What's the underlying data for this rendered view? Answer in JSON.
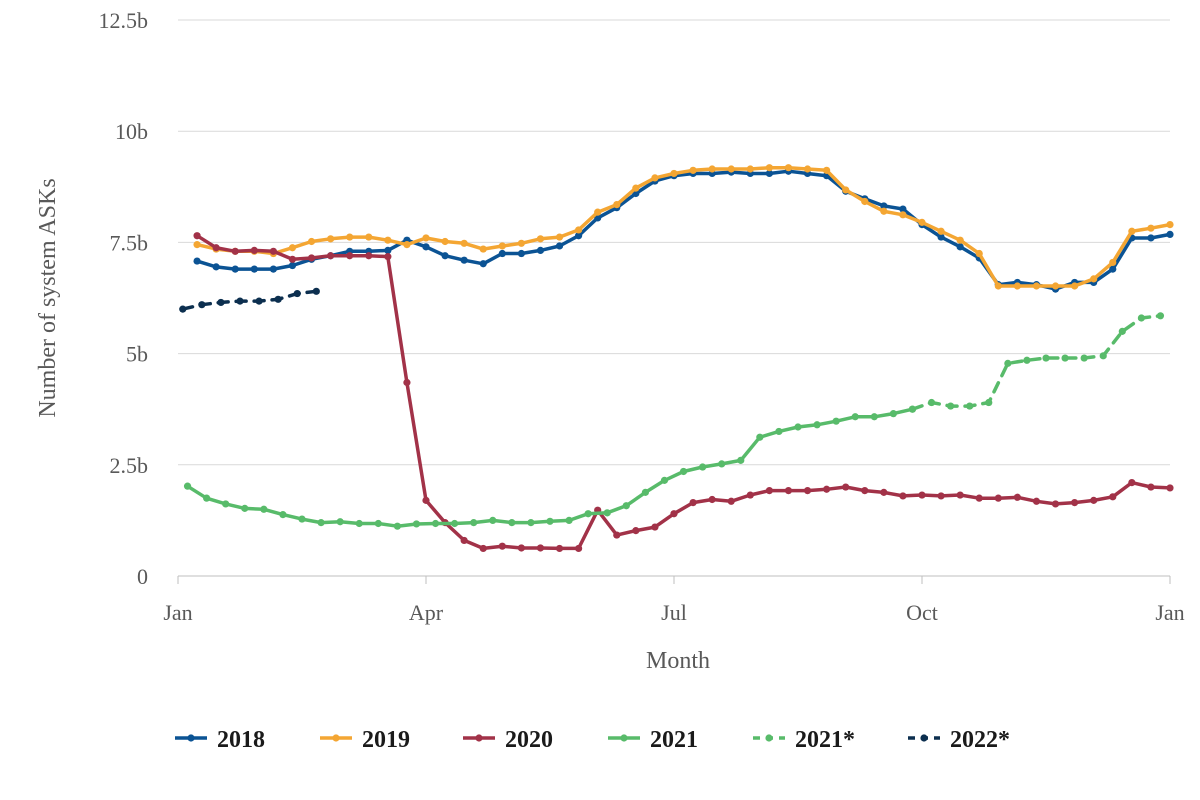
{
  "chart_data": {
    "type": "line",
    "xlabel": "Month",
    "ylabel": "Number of system ASKs",
    "x_ticks": [
      {
        "label": "Jan",
        "week": 0
      },
      {
        "label": "Apr",
        "week": 13
      },
      {
        "label": "Jul",
        "week": 26
      },
      {
        "label": "Oct",
        "week": 39
      },
      {
        "label": "Jan",
        "week": 52
      }
    ],
    "y_ticks": [
      "0",
      "2.5b",
      "5b",
      "7.5b",
      "10b",
      "12.5b"
    ],
    "ylim": [
      0,
      12.5
    ],
    "legend_position": "bottom",
    "series": [
      {
        "name": "2018",
        "color": "#0b5394",
        "dashed": false,
        "x": [
          1,
          2,
          3,
          4,
          5,
          6,
          7,
          8,
          9,
          10,
          11,
          12,
          13,
          14,
          15,
          16,
          17,
          18,
          19,
          20,
          21,
          22,
          23,
          24,
          25,
          26,
          27,
          28,
          29,
          30,
          31,
          32,
          33,
          34,
          35,
          36,
          37,
          38,
          39,
          40,
          41,
          42,
          43,
          44,
          45,
          46,
          47,
          48,
          49,
          50,
          51,
          52
        ],
        "y": [
          7.08,
          6.95,
          6.9,
          6.9,
          6.9,
          6.98,
          7.12,
          7.2,
          7.3,
          7.3,
          7.32,
          7.55,
          7.4,
          7.2,
          7.1,
          7.02,
          7.25,
          7.25,
          7.32,
          7.42,
          7.65,
          8.05,
          8.28,
          8.6,
          8.88,
          9.0,
          9.05,
          9.05,
          9.08,
          9.05,
          9.05,
          9.1,
          9.05,
          9.0,
          8.65,
          8.48,
          8.32,
          8.25,
          7.9,
          7.62,
          7.4,
          7.15,
          6.55,
          6.6,
          6.55,
          6.45,
          6.6,
          6.6,
          6.9,
          7.6,
          7.6,
          7.68
        ]
      },
      {
        "name": "2019",
        "color": "#f4a633",
        "dashed": false,
        "x": [
          1,
          2,
          3,
          4,
          5,
          6,
          7,
          8,
          9,
          10,
          11,
          12,
          13,
          14,
          15,
          16,
          17,
          18,
          19,
          20,
          21,
          22,
          23,
          24,
          25,
          26,
          27,
          28,
          29,
          30,
          31,
          32,
          33,
          34,
          35,
          36,
          37,
          38,
          39,
          40,
          41,
          42,
          43,
          44,
          45,
          46,
          47,
          48,
          49,
          50,
          51,
          52
        ],
        "y": [
          7.45,
          7.35,
          7.3,
          7.3,
          7.25,
          7.38,
          7.52,
          7.58,
          7.62,
          7.62,
          7.55,
          7.45,
          7.6,
          7.52,
          7.48,
          7.35,
          7.42,
          7.48,
          7.58,
          7.62,
          7.78,
          8.18,
          8.35,
          8.72,
          8.95,
          9.05,
          9.12,
          9.15,
          9.15,
          9.15,
          9.18,
          9.18,
          9.15,
          9.12,
          8.68,
          8.42,
          8.2,
          8.12,
          7.95,
          7.75,
          7.55,
          7.25,
          6.52,
          6.52,
          6.52,
          6.52,
          6.52,
          6.68,
          7.05,
          7.75,
          7.82,
          7.9
        ]
      },
      {
        "name": "2020",
        "color": "#a23248",
        "dashed": false,
        "x": [
          1,
          2,
          3,
          4,
          5,
          6,
          7,
          8,
          9,
          10,
          11,
          12,
          13,
          14,
          15,
          16,
          17,
          18,
          19,
          20,
          21,
          22,
          23,
          24,
          25,
          26,
          27,
          28,
          29,
          30,
          31,
          32,
          33,
          34,
          35,
          36,
          37,
          38,
          39,
          40,
          41,
          42,
          43,
          44,
          45,
          46,
          47,
          48,
          49,
          50,
          51,
          52
        ],
        "y": [
          7.65,
          7.38,
          7.3,
          7.32,
          7.3,
          7.12,
          7.15,
          7.2,
          7.2,
          7.2,
          7.18,
          4.35,
          1.7,
          1.2,
          0.8,
          0.62,
          0.67,
          0.63,
          0.63,
          0.62,
          0.62,
          1.48,
          0.92,
          1.02,
          1.1,
          1.4,
          1.65,
          1.72,
          1.68,
          1.82,
          1.92,
          1.92,
          1.92,
          1.95,
          2.0,
          1.92,
          1.88,
          1.8,
          1.82,
          1.8,
          1.82,
          1.75,
          1.75,
          1.77,
          1.68,
          1.62,
          1.65,
          1.7,
          1.78,
          2.1,
          2.0,
          1.98
        ]
      },
      {
        "name": "2021",
        "color": "#58bb6a",
        "dashed": false,
        "x": [
          0.5,
          1.5,
          2.5,
          3.5,
          4.5,
          5.5,
          6.5,
          7.5,
          8.5,
          9.5,
          10.5,
          11.5,
          12.5,
          13.5,
          14.5,
          15.5,
          16.5,
          17.5,
          18.5,
          19.5,
          20.5,
          21.5,
          22.5,
          23.5,
          24.5,
          25.5,
          26.5,
          27.5,
          28.5,
          29.5,
          30.5,
          31.5,
          32.5,
          33.5,
          34.5,
          35.5,
          36.5,
          37.5,
          38.5
        ],
        "y": [
          2.02,
          1.75,
          1.62,
          1.52,
          1.5,
          1.38,
          1.28,
          1.2,
          1.22,
          1.18,
          1.18,
          1.12,
          1.17,
          1.18,
          1.18,
          1.2,
          1.25,
          1.2,
          1.2,
          1.23,
          1.25,
          1.4,
          1.42,
          1.58,
          1.88,
          2.15,
          2.35,
          2.45,
          2.52,
          2.6,
          3.12,
          3.25,
          3.35,
          3.4,
          3.48,
          3.58,
          3.58,
          3.65,
          3.75
        ]
      },
      {
        "name": "2021*",
        "color": "#58bb6a",
        "dashed": true,
        "x": [
          38.5,
          39.5,
          40.5,
          41.5,
          42.5,
          43.5,
          44.5,
          45.5,
          46.5,
          47.5,
          48.5,
          49.5,
          50.5,
          51.5
        ],
        "y": [
          3.75,
          3.9,
          3.82,
          3.82,
          3.9,
          4.78,
          4.85,
          4.9,
          4.9,
          4.9,
          4.95,
          5.5,
          5.8,
          5.85
        ]
      },
      {
        "name": "2022*",
        "color": "#0c2f4f",
        "dashed": true,
        "x": [
          0.25,
          1.25,
          2.25,
          3.25,
          4.25,
          5.25,
          6.25,
          7.25
        ],
        "y": [
          6.0,
          6.1,
          6.15,
          6.18,
          6.18,
          6.22,
          6.35,
          6.4
        ]
      }
    ]
  }
}
